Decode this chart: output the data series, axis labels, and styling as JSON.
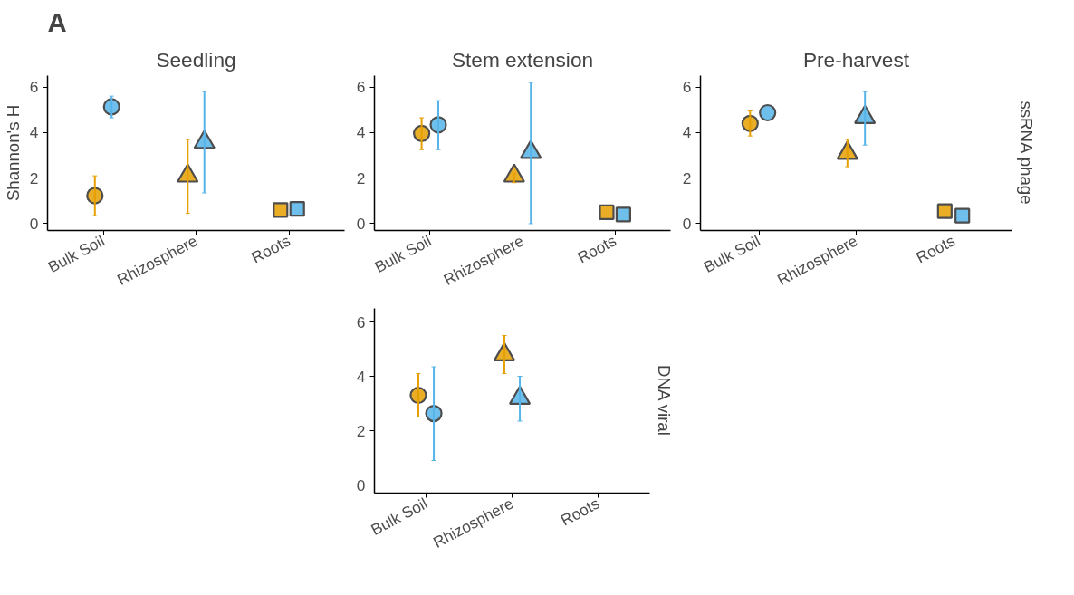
{
  "chart_data": [
    {
      "type": "scatter",
      "title": "Seedling",
      "ylabel": "Shannon's H",
      "annotations": [
        "A"
      ],
      "categories": [
        "Bulk Soil",
        "Rhizosphere",
        "Roots"
      ],
      "ylim": [
        -0.3,
        6.5
      ],
      "yticks": [
        0,
        2,
        4,
        6
      ],
      "series": [
        {
          "color": "#e69f00",
          "marker": "circle",
          "values": [
            1.23,
            null,
            null
          ],
          "errors": [
            [
              0.35,
              2.1
            ],
            null,
            null
          ]
        },
        {
          "color": "#56b4e9",
          "marker": "circle",
          "values": [
            5.13,
            null,
            null
          ],
          "errors": [
            [
              4.65,
              5.6
            ],
            null,
            null
          ]
        },
        {
          "color": "#e69f00",
          "marker": "triangle",
          "values": [
            null,
            2.1,
            null
          ],
          "errors": [
            null,
            [
              0.45,
              3.7
            ],
            null
          ]
        },
        {
          "color": "#56b4e9",
          "marker": "triangle",
          "values": [
            null,
            3.58,
            null
          ],
          "errors": [
            null,
            [
              1.35,
              5.8
            ],
            null
          ]
        },
        {
          "color": "#e69f00",
          "marker": "square",
          "values": [
            null,
            null,
            0.6
          ]
        },
        {
          "color": "#56b4e9",
          "marker": "square",
          "values": [
            null,
            null,
            0.65
          ]
        }
      ]
    },
    {
      "type": "scatter",
      "title": "Stem extension",
      "categories": [
        "Bulk Soil",
        "Rhizosphere",
        "Roots"
      ],
      "ylim": [
        -0.3,
        6.5
      ],
      "yticks": [
        0,
        2,
        4,
        6
      ],
      "series": [
        {
          "color": "#e69f00",
          "marker": "circle",
          "values": [
            3.96,
            null,
            null
          ],
          "errors": [
            [
              3.25,
              4.65
            ],
            null,
            null
          ]
        },
        {
          "color": "#56b4e9",
          "marker": "circle",
          "values": [
            4.34,
            null,
            null
          ],
          "errors": [
            [
              3.25,
              5.4
            ],
            null,
            null
          ]
        },
        {
          "color": "#e69f00",
          "marker": "triangle",
          "values": [
            null,
            2.1,
            null
          ],
          "errors": [
            null,
            [
              1.8,
              2.2
            ],
            null
          ]
        },
        {
          "color": "#56b4e9",
          "marker": "triangle",
          "values": [
            null,
            3.14,
            null
          ],
          "errors": [
            null,
            [
              0,
              6.2
            ],
            null
          ]
        },
        {
          "color": "#e69f00",
          "marker": "square",
          "values": [
            null,
            null,
            0.5
          ]
        },
        {
          "color": "#56b4e9",
          "marker": "square",
          "values": [
            null,
            null,
            0.4
          ]
        }
      ]
    },
    {
      "type": "scatter",
      "title": "Pre-harvest",
      "annotations": [
        "ssRNA phage"
      ],
      "categories": [
        "Bulk Soil",
        "Rhizosphere",
        "Roots"
      ],
      "ylim": [
        -0.3,
        6.5
      ],
      "yticks": [
        0,
        2,
        4,
        6
      ],
      "series": [
        {
          "color": "#e69f00",
          "marker": "circle",
          "values": [
            4.4,
            null,
            null
          ],
          "errors": [
            [
              3.85,
              4.95
            ],
            null,
            null
          ]
        },
        {
          "color": "#56b4e9",
          "marker": "circle",
          "values": [
            4.87,
            null,
            null
          ]
        },
        {
          "color": "#e69f00",
          "marker": "triangle",
          "values": [
            null,
            3.1,
            null
          ],
          "errors": [
            null,
            [
              2.5,
              3.7
            ],
            null
          ]
        },
        {
          "color": "#56b4e9",
          "marker": "triangle",
          "values": [
            null,
            4.67,
            null
          ],
          "errors": [
            null,
            [
              3.45,
              5.8
            ],
            null
          ]
        },
        {
          "color": "#e69f00",
          "marker": "square",
          "values": [
            null,
            null,
            0.55
          ]
        },
        {
          "color": "#56b4e9",
          "marker": "square",
          "values": [
            null,
            null,
            0.35
          ]
        }
      ]
    },
    {
      "type": "scatter",
      "annotations": [
        "DNA viral"
      ],
      "categories": [
        "Bulk Soil",
        "Rhizosphere",
        "Roots"
      ],
      "ylim": [
        -0.3,
        6.5
      ],
      "yticks": [
        0,
        2,
        4,
        6
      ],
      "series": [
        {
          "color": "#e69f00",
          "marker": "circle",
          "values": [
            3.3,
            null,
            null
          ],
          "errors": [
            [
              2.5,
              4.1
            ],
            null,
            null
          ]
        },
        {
          "color": "#56b4e9",
          "marker": "circle",
          "values": [
            2.63,
            null,
            null
          ],
          "errors": [
            [
              0.9,
              4.35
            ],
            null,
            null
          ]
        },
        {
          "color": "#e69f00",
          "marker": "triangle",
          "values": [
            null,
            4.8,
            null
          ],
          "errors": [
            null,
            [
              4.1,
              5.5
            ],
            null
          ]
        },
        {
          "color": "#56b4e9",
          "marker": "triangle",
          "values": [
            null,
            3.2,
            null
          ],
          "errors": [
            null,
            [
              2.35,
              4.0
            ],
            null
          ]
        }
      ]
    }
  ]
}
